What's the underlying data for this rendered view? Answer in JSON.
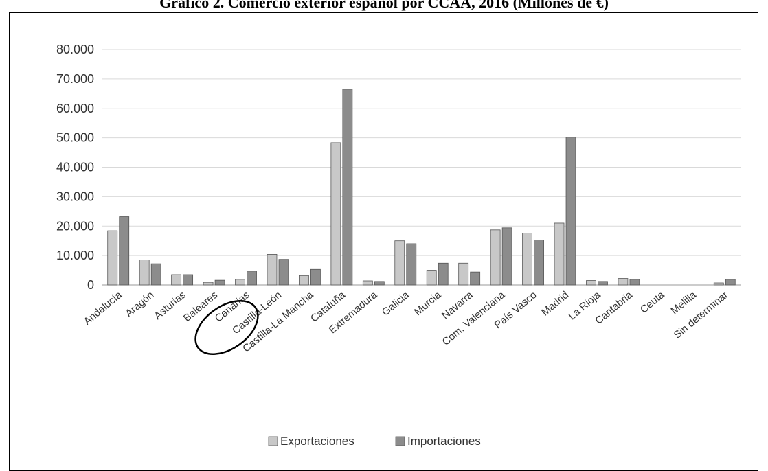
{
  "chart_data": {
    "type": "bar",
    "title": "Gráfico 2. Comercio exterior español por CCAA, 2016 (Millones de €)",
    "categories": [
      "Andalucía",
      "Aragón",
      "Asturias",
      "Baleares",
      "Canarias",
      "Castilla-León",
      "Castilla-La Mancha",
      "Cataluña",
      "Extremadura",
      "Galicia",
      "Murcia",
      "Navarra",
      "Com. Valenciana",
      "País Vasco",
      "Madrid",
      "La Rioja",
      "Cantabria",
      "Ceuta",
      "Melilla",
      "Sin determinar"
    ],
    "series": [
      {
        "name": "Exportaciones",
        "color": "#c8c8c8",
        "values": [
          18400,
          8500,
          3500,
          900,
          1900,
          10400,
          3200,
          48300,
          1400,
          15000,
          5000,
          7400,
          18700,
          17600,
          21000,
          1500,
          2200,
          0,
          0,
          700
        ]
      },
      {
        "name": "Importaciones",
        "color": "#8c8c8c",
        "values": [
          23200,
          7200,
          3500,
          1600,
          4700,
          8700,
          5300,
          66500,
          1200,
          14000,
          7400,
          4400,
          19400,
          15300,
          50200,
          1200,
          1900,
          0,
          0,
          1900
        ]
      }
    ],
    "ylim": [
      0,
      80000
    ],
    "yticks": [
      "0",
      "10.000",
      "20.000",
      "30.000",
      "40.000",
      "50.000",
      "60.000",
      "70.000",
      "80.000"
    ],
    "grid": true,
    "legend": "bottom",
    "annotation": "Canarias circled"
  }
}
